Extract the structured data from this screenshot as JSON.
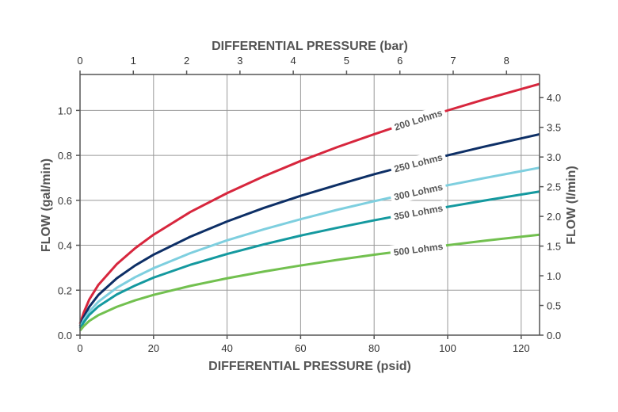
{
  "chart_data": {
    "type": "line",
    "xlabel": "DIFFERENTIAL PRESSURE (psid)",
    "x2label": "DIFFERENTIAL PRESSURE (bar)",
    "ylabel": "FLOW (gal/min)",
    "y2label": "FLOW (l/min)",
    "xlim": [
      0,
      125
    ],
    "ylim": [
      0,
      1.16
    ],
    "x2lim": [
      0,
      8.62
    ],
    "y2lim": [
      0,
      4.39
    ],
    "xticks": [
      0,
      20,
      40,
      60,
      80,
      100,
      120
    ],
    "yticks": [
      0.0,
      0.2,
      0.4,
      0.6,
      0.8,
      1.0
    ],
    "x2ticks": [
      0,
      1,
      2,
      3,
      4,
      5,
      6,
      7,
      8
    ],
    "y2ticks": [
      0.0,
      0.5,
      1.0,
      1.5,
      2.0,
      2.5,
      3.0,
      3.5,
      4.0
    ],
    "ytick_labels": [
      "0.0",
      "0.2",
      "0.4",
      "0.6",
      "0.8",
      "1.0"
    ],
    "y2tick_labels": [
      "0.0",
      "0.5",
      "1.0",
      "1.5",
      "2.0",
      "2.5",
      "3.0",
      "3.5",
      "4.0"
    ],
    "grid": true,
    "legend": "inline labels on curves",
    "series": [
      {
        "name": "200 Lohms",
        "color": "#d7263d",
        "label_x": 92,
        "x": [
          0,
          1,
          2.5,
          5,
          10,
          15,
          20,
          30,
          40,
          50,
          60,
          70,
          80,
          90,
          100,
          110,
          125
        ],
        "y": [
          0.05,
          0.1,
          0.158,
          0.224,
          0.316,
          0.387,
          0.447,
          0.548,
          0.632,
          0.707,
          0.775,
          0.837,
          0.894,
          0.949,
          1.0,
          1.049,
          1.118
        ]
      },
      {
        "name": "250 Lohms",
        "color": "#0d2f66",
        "label_x": 92,
        "x": [
          0,
          1,
          2.5,
          5,
          10,
          15,
          20,
          30,
          40,
          50,
          60,
          70,
          80,
          90,
          100,
          110,
          125
        ],
        "y": [
          0.04,
          0.08,
          0.126,
          0.179,
          0.253,
          0.31,
          0.358,
          0.438,
          0.506,
          0.566,
          0.62,
          0.669,
          0.716,
          0.759,
          0.8,
          0.839,
          0.894
        ]
      },
      {
        "name": "300 Lohms",
        "color": "#7ecfdf",
        "label_x": 92,
        "x": [
          0,
          1,
          2.5,
          5,
          10,
          15,
          20,
          30,
          40,
          50,
          60,
          70,
          80,
          90,
          100,
          110,
          125
        ],
        "y": [
          0.033,
          0.067,
          0.105,
          0.149,
          0.211,
          0.258,
          0.298,
          0.365,
          0.422,
          0.471,
          0.516,
          0.558,
          0.596,
          0.632,
          0.667,
          0.699,
          0.745
        ]
      },
      {
        "name": "350 Lohms",
        "color": "#14999f",
        "label_x": 92,
        "x": [
          0,
          1,
          2.5,
          5,
          10,
          15,
          20,
          30,
          40,
          50,
          60,
          70,
          80,
          90,
          100,
          110,
          125
        ],
        "y": [
          0.029,
          0.057,
          0.09,
          0.128,
          0.181,
          0.221,
          0.256,
          0.313,
          0.361,
          0.404,
          0.443,
          0.478,
          0.511,
          0.542,
          0.571,
          0.599,
          0.639
        ]
      },
      {
        "name": "500 Lohms",
        "color": "#72c04f",
        "label_x": 92,
        "x": [
          0,
          1,
          2.5,
          5,
          10,
          15,
          20,
          30,
          40,
          50,
          60,
          70,
          80,
          90,
          100,
          110,
          125
        ],
        "y": [
          0.02,
          0.04,
          0.063,
          0.089,
          0.126,
          0.155,
          0.179,
          0.219,
          0.253,
          0.283,
          0.31,
          0.335,
          0.358,
          0.379,
          0.4,
          0.42,
          0.447
        ]
      }
    ]
  }
}
